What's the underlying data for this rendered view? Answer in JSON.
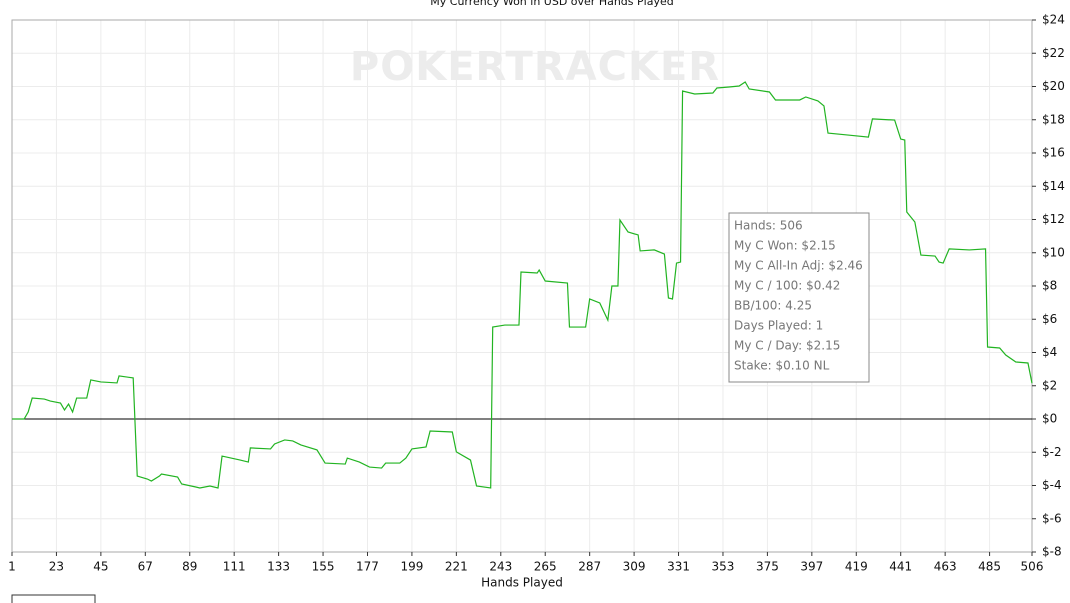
{
  "chart_data": {
    "type": "line",
    "title": "My Currency Won in USD over Hands Played",
    "x_label": "Hands Played",
    "watermark": "POKERTRACKER",
    "tooltip": [
      "Hands: 506",
      "My C Won: $2.15",
      "My C All-In Adj: $2.46",
      "My C / 100: $0.42",
      "BB/100: 4.25",
      "Days Played: 1",
      "My C / Day: $2.15",
      "Stake: $0.10 NL"
    ],
    "grid": true,
    "xlim": [
      1,
      506
    ],
    "xticks": [
      1,
      23,
      45,
      67,
      89,
      111,
      133,
      155,
      177,
      199,
      221,
      243,
      265,
      287,
      309,
      331,
      353,
      375,
      397,
      419,
      441,
      463,
      485,
      506
    ],
    "ylim": [
      -8,
      24
    ],
    "yticks": [
      {
        "value": -8,
        "label": "$-8"
      },
      {
        "value": -6,
        "label": "$-6"
      },
      {
        "value": -4,
        "label": "$-4"
      },
      {
        "value": -2,
        "label": "$-2"
      },
      {
        "value": 0,
        "label": "$0"
      },
      {
        "value": 2,
        "label": "$2"
      },
      {
        "value": 4,
        "label": "$4"
      },
      {
        "value": 6,
        "label": "$6"
      },
      {
        "value": 8,
        "label": "$8"
      },
      {
        "value": 10,
        "label": "$10"
      },
      {
        "value": 12,
        "label": "$12"
      },
      {
        "value": 14,
        "label": "$14"
      },
      {
        "value": 16,
        "label": "$16"
      },
      {
        "value": 18,
        "label": "$18"
      },
      {
        "value": 20,
        "label": "$20"
      },
      {
        "value": 22,
        "label": "$22"
      },
      {
        "value": 24,
        "label": "$24"
      }
    ],
    "series": [
      {
        "color": "#22b422",
        "x": [
          1,
          7,
          9,
          11,
          17,
          20,
          25,
          27,
          29,
          31,
          33,
          38,
          40,
          45,
          53,
          54,
          61,
          63,
          68,
          70,
          74,
          75,
          83,
          85,
          92,
          94,
          99,
          103,
          105,
          114,
          118,
          119,
          129,
          131,
          136,
          140,
          144,
          152,
          156,
          166,
          167,
          173,
          178,
          184,
          186,
          193,
          196,
          199,
          206,
          208,
          219,
          221,
          228,
          231,
          238,
          239,
          245,
          252,
          253,
          261,
          262,
          265,
          276,
          277,
          285,
          287,
          292,
          296,
          298,
          301,
          302,
          306,
          311,
          312,
          319,
          324,
          326,
          328,
          330,
          332,
          333,
          339,
          348,
          350,
          356,
          361,
          364,
          366,
          376,
          379,
          391,
          394,
          400,
          403,
          405,
          415,
          425,
          427,
          438,
          441,
          443,
          444,
          448,
          451,
          458,
          460,
          462,
          465,
          475,
          483,
          484,
          490,
          493,
          498,
          504,
          506
        ],
        "values": [
          0,
          0,
          0.42,
          1.26,
          1.2,
          1.08,
          0.96,
          0.54,
          0.9,
          0.42,
          1.26,
          1.26,
          2.35,
          2.23,
          2.17,
          2.59,
          2.47,
          -3.43,
          -3.61,
          -3.73,
          -3.43,
          -3.31,
          -3.49,
          -3.91,
          -4.09,
          -4.15,
          -4.03,
          -4.15,
          -2.23,
          -2.47,
          -2.59,
          -1.74,
          -1.8,
          -1.5,
          -1.26,
          -1.32,
          -1.56,
          -1.86,
          -2.65,
          -2.71,
          -2.35,
          -2.59,
          -2.89,
          -2.95,
          -2.65,
          -2.65,
          -2.35,
          -1.8,
          -1.68,
          -0.72,
          -0.78,
          -1.98,
          -2.47,
          -4.03,
          -4.15,
          5.53,
          5.65,
          5.65,
          8.84,
          8.78,
          8.96,
          8.3,
          8.18,
          5.53,
          5.53,
          7.22,
          6.98,
          5.95,
          8.0,
          8.0,
          11.97,
          11.25,
          11.07,
          10.11,
          10.17,
          9.92,
          7.28,
          7.22,
          9.38,
          9.44,
          19.73,
          19.55,
          19.61,
          19.91,
          19.97,
          20.03,
          20.27,
          19.85,
          19.67,
          19.19,
          19.19,
          19.37,
          19.13,
          18.83,
          17.2,
          17.08,
          16.96,
          18.05,
          17.98,
          16.84,
          16.78,
          12.45,
          11.85,
          9.86,
          9.8,
          9.44,
          9.38,
          10.23,
          10.17,
          10.23,
          4.33,
          4.27,
          3.85,
          3.43,
          3.37,
          2.15
        ]
      }
    ]
  }
}
